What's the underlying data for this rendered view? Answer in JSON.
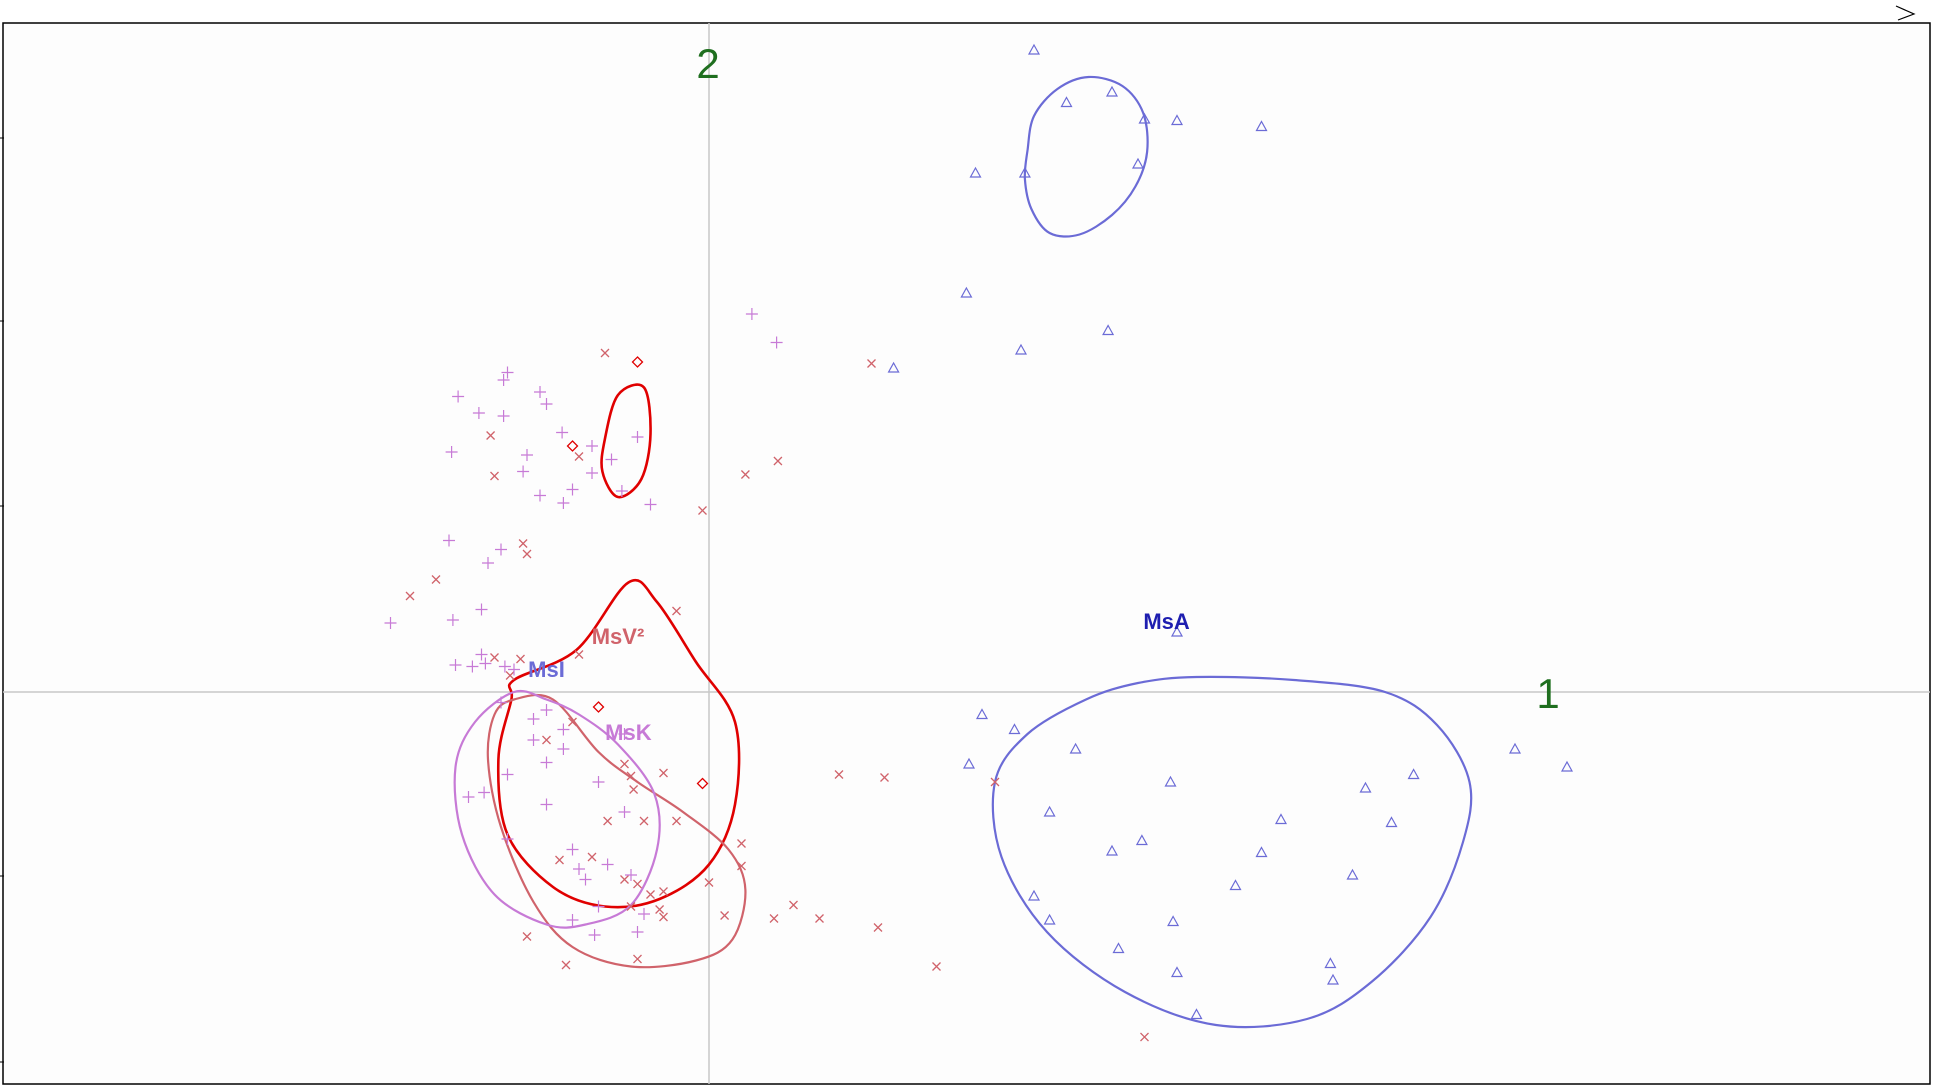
{
  "chart_data": {
    "type": "scatter",
    "title": "",
    "xlabel": "",
    "ylabel": "",
    "xlim": [
      -5.5,
      9.4
    ],
    "ylim": [
      -2.9,
      4.5
    ],
    "grid": false,
    "legend": "none",
    "axis_labels": {
      "x": "1",
      "y": "2"
    },
    "colors": {
      "axis_label": "#1f6f1f",
      "MsA": "#6b6bd6",
      "MsA_label": "#1e1eb0",
      "MsI": "#6b6bd6",
      "MsV2": "#d0636b",
      "MsK": "#c77ad6",
      "red_ellipses": "#e00000"
    },
    "series": [
      {
        "name": "MsA",
        "marker": "triangle",
        "color": "#6b6bd6",
        "points": [
          [
            2.5,
            4.28
          ],
          [
            2.75,
            3.93
          ],
          [
            3.1,
            4.0
          ],
          [
            3.35,
            3.82
          ],
          [
            3.6,
            3.81
          ],
          [
            4.25,
            3.77
          ],
          [
            2.05,
            3.46
          ],
          [
            2.43,
            3.46
          ],
          [
            3.3,
            3.52
          ],
          [
            1.98,
            2.66
          ],
          [
            3.07,
            2.41
          ],
          [
            2.4,
            2.28
          ],
          [
            1.42,
            2.16
          ],
          [
            3.6,
            0.4
          ],
          [
            2.1,
            -0.15
          ],
          [
            2.35,
            -0.25
          ],
          [
            2.82,
            -0.38
          ],
          [
            2.0,
            -0.48
          ],
          [
            6.2,
            -0.38
          ],
          [
            6.6,
            -0.5
          ],
          [
            5.42,
            -0.55
          ],
          [
            5.05,
            -0.64
          ],
          [
            3.55,
            -0.6
          ],
          [
            2.62,
            -0.8
          ],
          [
            4.4,
            -0.85
          ],
          [
            5.25,
            -0.87
          ],
          [
            3.33,
            -0.99
          ],
          [
            3.1,
            -1.06
          ],
          [
            4.25,
            -1.07
          ],
          [
            4.95,
            -1.22
          ],
          [
            4.05,
            -1.29
          ],
          [
            2.5,
            -1.36
          ],
          [
            2.62,
            -1.52
          ],
          [
            3.57,
            -1.53
          ],
          [
            3.15,
            -1.71
          ],
          [
            4.78,
            -1.81
          ],
          [
            3.6,
            -1.87
          ],
          [
            4.8,
            -1.92
          ],
          [
            3.75,
            -2.15
          ]
        ]
      },
      {
        "name": "MsV2",
        "marker": "x",
        "color": "#d0636b",
        "points": [
          [
            -0.8,
            2.26
          ],
          [
            1.25,
            2.19
          ],
          [
            -1.68,
            1.71
          ],
          [
            -1.0,
            1.57
          ],
          [
            0.53,
            1.54
          ],
          [
            -1.65,
            1.44
          ],
          [
            0.28,
            1.45
          ],
          [
            -0.05,
            1.21
          ],
          [
            -1.43,
            0.99
          ],
          [
            -1.4,
            0.92
          ],
          [
            -2.1,
            0.75
          ],
          [
            -2.3,
            0.64
          ],
          [
            -0.25,
            0.54
          ],
          [
            -1.65,
            0.23
          ],
          [
            -1.45,
            0.22
          ],
          [
            -1.53,
            0.11
          ],
          [
            -1.0,
            0.25
          ],
          [
            -1.05,
            -0.2
          ],
          [
            -1.25,
            -0.32
          ],
          [
            -0.65,
            -0.48
          ],
          [
            -0.6,
            -0.56
          ],
          [
            -0.35,
            -0.54
          ],
          [
            -0.58,
            -0.65
          ],
          [
            1.0,
            -0.55
          ],
          [
            1.35,
            -0.57
          ],
          [
            2.2,
            -0.6
          ],
          [
            -0.78,
            -0.86
          ],
          [
            -0.5,
            -0.86
          ],
          [
            -0.25,
            -0.86
          ],
          [
            -0.9,
            -1.1
          ],
          [
            -1.15,
            -1.12
          ],
          [
            -0.65,
            -1.25
          ],
          [
            -0.55,
            -1.28
          ],
          [
            -0.35,
            -1.33
          ],
          [
            -0.6,
            -1.43
          ],
          [
            -0.35,
            -1.5
          ],
          [
            -0.38,
            -1.45
          ],
          [
            0.0,
            -1.27
          ],
          [
            0.25,
            -1.16
          ],
          [
            0.25,
            -1.01
          ],
          [
            -0.45,
            -1.35
          ],
          [
            0.12,
            -1.49
          ],
          [
            0.5,
            -1.51
          ],
          [
            0.65,
            -1.42
          ],
          [
            0.85,
            -1.51
          ],
          [
            1.3,
            -1.57
          ],
          [
            1.75,
            -1.83
          ],
          [
            -1.4,
            -1.63
          ],
          [
            -0.55,
            -1.78
          ],
          [
            -1.1,
            -1.82
          ],
          [
            3.35,
            -2.3
          ]
        ]
      },
      {
        "name": "MsK",
        "marker": "plus",
        "color": "#c77ad6",
        "points": [
          [
            0.33,
            2.52
          ],
          [
            0.52,
            2.33
          ],
          [
            -1.55,
            2.13
          ],
          [
            -1.58,
            2.08
          ],
          [
            -1.3,
            2.0
          ],
          [
            -1.25,
            1.92
          ],
          [
            -1.93,
            1.97
          ],
          [
            -1.77,
            1.86
          ],
          [
            -1.58,
            1.84
          ],
          [
            -1.13,
            1.73
          ],
          [
            -1.98,
            1.6
          ],
          [
            -1.4,
            1.58
          ],
          [
            -1.43,
            1.47
          ],
          [
            -1.3,
            1.31
          ],
          [
            -1.05,
            1.35
          ],
          [
            -1.12,
            1.26
          ],
          [
            -0.9,
            1.64
          ],
          [
            -0.55,
            1.7
          ],
          [
            -0.9,
            1.46
          ],
          [
            -0.75,
            1.55
          ],
          [
            -0.67,
            1.34
          ],
          [
            -0.45,
            1.25
          ],
          [
            -2.0,
            1.01
          ],
          [
            -1.6,
            0.95
          ],
          [
            -1.7,
            0.86
          ],
          [
            -1.75,
            0.55
          ],
          [
            -1.97,
            0.48
          ],
          [
            -2.45,
            0.46
          ],
          [
            -1.75,
            0.25
          ],
          [
            -1.95,
            0.18
          ],
          [
            -1.82,
            0.17
          ],
          [
            -1.72,
            0.19
          ],
          [
            -1.57,
            0.17
          ],
          [
            -1.5,
            0.15
          ],
          [
            -1.6,
            -0.07
          ],
          [
            -1.35,
            -0.18
          ],
          [
            -1.25,
            -0.12
          ],
          [
            -1.12,
            -0.25
          ],
          [
            -1.12,
            -0.38
          ],
          [
            -1.35,
            -0.32
          ],
          [
            -0.65,
            -0.28
          ],
          [
            -1.85,
            -0.7
          ],
          [
            -1.73,
            -0.67
          ],
          [
            -1.55,
            -0.55
          ],
          [
            -1.25,
            -0.47
          ],
          [
            -0.85,
            -0.6
          ],
          [
            -1.25,
            -0.75
          ],
          [
            -0.65,
            -0.8
          ],
          [
            -1.55,
            -0.98
          ],
          [
            -1.05,
            -1.05
          ],
          [
            -1.0,
            -1.18
          ],
          [
            -0.95,
            -1.25
          ],
          [
            -0.78,
            -1.15
          ],
          [
            -0.6,
            -1.22
          ],
          [
            -0.85,
            -1.43
          ],
          [
            -1.05,
            -1.52
          ],
          [
            -0.88,
            -1.62
          ],
          [
            -0.55,
            -1.6
          ],
          [
            -0.5,
            -1.48
          ]
        ]
      },
      {
        "name": "MsI",
        "marker": "diamond",
        "color": "#e00000",
        "points": [
          [
            -0.55,
            2.2
          ],
          [
            -1.05,
            1.64
          ],
          [
            -0.85,
            -0.1
          ],
          [
            -0.05,
            -0.61
          ]
        ]
      }
    ],
    "group_labels": [
      {
        "text": "MsA",
        "x": 3.52,
        "y": 0.42,
        "color": "#1e1eb0"
      },
      {
        "text": "MsI",
        "x": -1.25,
        "y": 0.1,
        "color": "#6b6bd6"
      },
      {
        "text": "MsV²",
        "x": -0.7,
        "y": 0.32,
        "color": "#d0636b"
      },
      {
        "text": "MsK",
        "x": -0.62,
        "y": -0.32,
        "color": "#c77ad6"
      }
    ],
    "ellipses": [
      {
        "name": "MsA-upper",
        "color": "#6b6bd6",
        "points": [
          [
            2.45,
            3.61
          ],
          [
            2.5,
            3.84
          ],
          [
            2.68,
            4.02
          ],
          [
            2.92,
            4.1
          ],
          [
            3.18,
            4.04
          ],
          [
            3.34,
            3.86
          ],
          [
            3.37,
            3.6
          ],
          [
            3.28,
            3.37
          ],
          [
            3.1,
            3.18
          ],
          [
            2.85,
            3.05
          ],
          [
            2.62,
            3.06
          ],
          [
            2.48,
            3.22
          ],
          [
            2.43,
            3.42
          ]
        ]
      },
      {
        "name": "MsA-lower",
        "color": "#6b6bd6",
        "points": [
          [
            3.75,
            0.1
          ],
          [
            4.5,
            0.08
          ],
          [
            5.2,
            0.0
          ],
          [
            5.6,
            -0.22
          ],
          [
            5.85,
            -0.6
          ],
          [
            5.8,
            -1.0
          ],
          [
            5.55,
            -1.5
          ],
          [
            5.1,
            -1.93
          ],
          [
            4.6,
            -2.18
          ],
          [
            3.9,
            -2.22
          ],
          [
            3.2,
            -2.0
          ],
          [
            2.6,
            -1.6
          ],
          [
            2.25,
            -1.1
          ],
          [
            2.2,
            -0.6
          ],
          [
            2.45,
            -0.28
          ],
          [
            2.9,
            -0.05
          ],
          [
            3.3,
            0.06
          ]
        ]
      },
      {
        "name": "MsI-small",
        "color": "#e00000",
        "points": [
          [
            -0.8,
            1.69
          ],
          [
            -0.7,
            1.98
          ],
          [
            -0.5,
            2.03
          ],
          [
            -0.45,
            1.72
          ],
          [
            -0.52,
            1.42
          ],
          [
            -0.7,
            1.3
          ],
          [
            -0.82,
            1.47
          ]
        ]
      },
      {
        "name": "MsI-large",
        "color": "#e00000",
        "points": [
          [
            -1.5,
            0.08
          ],
          [
            -1.02,
            0.28
          ],
          [
            -0.62,
            0.73
          ],
          [
            -0.4,
            0.6
          ],
          [
            -0.1,
            0.2
          ],
          [
            0.2,
            -0.2
          ],
          [
            0.2,
            -0.75
          ],
          [
            0.0,
            -1.15
          ],
          [
            -0.38,
            -1.38
          ],
          [
            -0.8,
            -1.43
          ],
          [
            -1.2,
            -1.3
          ],
          [
            -1.55,
            -0.95
          ],
          [
            -1.62,
            -0.45
          ],
          [
            -1.52,
            -0.05
          ]
        ]
      },
      {
        "name": "MsV2",
        "color": "#d0636b",
        "points": [
          [
            -1.5,
            -0.05
          ],
          [
            -1.2,
            -0.05
          ],
          [
            -0.85,
            -0.4
          ],
          [
            -0.55,
            -0.6
          ],
          [
            -0.2,
            -0.8
          ],
          [
            0.15,
            -1.05
          ],
          [
            0.28,
            -1.32
          ],
          [
            0.18,
            -1.65
          ],
          [
            -0.1,
            -1.79
          ],
          [
            -0.6,
            -1.83
          ],
          [
            -1.05,
            -1.7
          ],
          [
            -1.35,
            -1.4
          ],
          [
            -1.6,
            -0.9
          ],
          [
            -1.7,
            -0.45
          ],
          [
            -1.65,
            -0.15
          ]
        ]
      },
      {
        "name": "MsK",
        "color": "#c77ad6",
        "points": [
          [
            -1.5,
            0.0
          ],
          [
            -1.8,
            -0.2
          ],
          [
            -1.95,
            -0.5
          ],
          [
            -1.9,
            -0.95
          ],
          [
            -1.65,
            -1.35
          ],
          [
            -1.25,
            -1.55
          ],
          [
            -0.95,
            -1.55
          ],
          [
            -0.6,
            -1.42
          ],
          [
            -0.4,
            -1.05
          ],
          [
            -0.42,
            -0.68
          ],
          [
            -0.7,
            -0.35
          ],
          [
            -1.0,
            -0.15
          ],
          [
            -1.25,
            -0.05
          ]
        ]
      }
    ]
  }
}
